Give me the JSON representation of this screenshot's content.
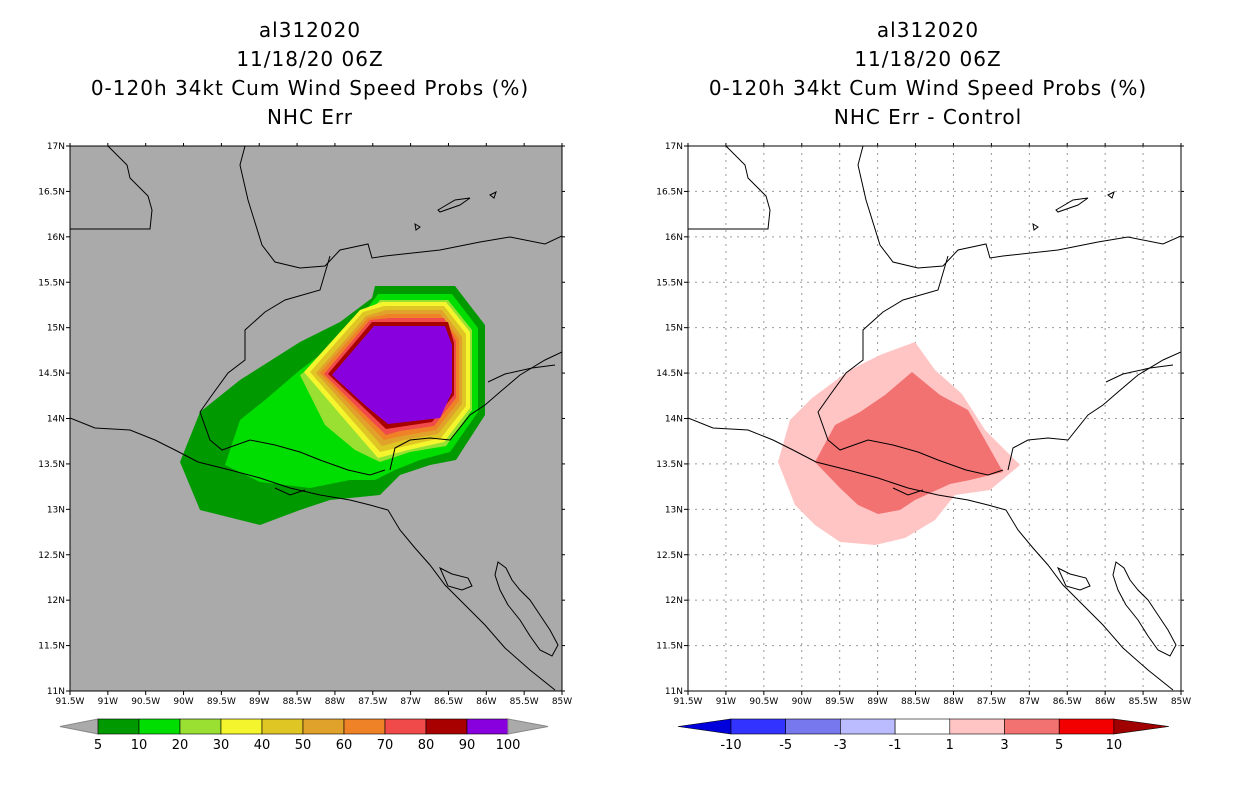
{
  "left_panel": {
    "storm_id": "al312020",
    "datetime": "11/18/20 06Z",
    "product": "0-120h 34kt Cum Wind Speed Probs (%)",
    "subtitle": "NHC Err",
    "colorbar_labels": [
      "5",
      "10",
      "20",
      "30",
      "40",
      "50",
      "60",
      "70",
      "80",
      "90",
      "100"
    ],
    "colorbar_colors": [
      "#009900",
      "#00dd00",
      "#99e033",
      "#f5f52e",
      "#e0c624",
      "#e0a22a",
      "#ef8226",
      "#f04a4a",
      "#a80000",
      "#8800dd"
    ],
    "ocean_color": "#aaaaaa"
  },
  "right_panel": {
    "storm_id": "al312020",
    "datetime": "11/18/20 06Z",
    "product": "0-120h 34kt Cum Wind Speed Probs (%)",
    "subtitle": "NHC Err - Control",
    "colorbar_labels": [
      "-10",
      "-5",
      "-3",
      "-1",
      "1",
      "3",
      "5",
      "10"
    ],
    "colorbar_colors": [
      "#0000dd",
      "#3333ff",
      "#7777ee",
      "#bbbbff",
      "#ffffff",
      "#ffc4c4",
      "#f27272",
      "#f20000",
      "#a00000"
    ]
  },
  "axes": {
    "lon_labels": [
      "91.5W",
      "91W",
      "90.5W",
      "90W",
      "89.5W",
      "89W",
      "88.5W",
      "88W",
      "87.5W",
      "87W",
      "86.5W",
      "86W",
      "85.5W",
      "85W"
    ],
    "lat_labels": [
      "17N",
      "16.5N",
      "16N",
      "15.5N",
      "15N",
      "14.5N",
      "14N",
      "13.5N",
      "13N",
      "12.5N",
      "12N",
      "11.5N",
      "11N"
    ]
  }
}
